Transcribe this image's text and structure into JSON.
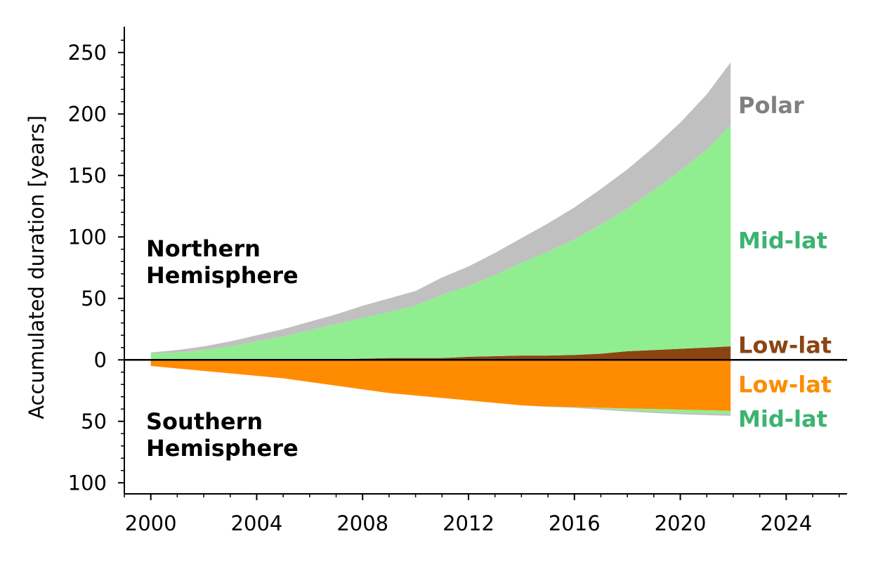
{
  "chart_data": {
    "type": "area",
    "ylabel": "Accumulated duration [years]",
    "xlim": [
      1999,
      2026.3
    ],
    "ylim": [
      -109,
      271
    ],
    "x_ticks": [
      2000,
      2004,
      2008,
      2012,
      2016,
      2020,
      2024
    ],
    "y_ticks": [
      {
        "value": 250,
        "label": "250"
      },
      {
        "value": 200,
        "label": "200"
      },
      {
        "value": 150,
        "label": "150"
      },
      {
        "value": 100,
        "label": "100"
      },
      {
        "value": 50,
        "label": "50"
      },
      {
        "value": 0,
        "label": "0"
      },
      {
        "value": -50,
        "label": "50"
      },
      {
        "value": -100,
        "label": "100"
      }
    ],
    "annotations": {
      "north": [
        "Northern",
        "Hemisphere"
      ],
      "south": [
        "Southern",
        "Hemisphere"
      ]
    },
    "x": [
      2000,
      2001,
      2002,
      2003,
      2004,
      2005,
      2006,
      2007,
      2008,
      2009,
      2010,
      2011,
      2012,
      2013,
      2014,
      2015,
      2016,
      2017,
      2018,
      2019,
      2020,
      2021,
      2021.9
    ],
    "northern_hemisphere": [
      {
        "name": "Low-lat",
        "color": "#8b4513",
        "values": [
          0,
          0,
          0,
          0,
          0,
          0,
          0,
          0.5,
          1,
          1.5,
          1.5,
          1.5,
          2.5,
          3,
          3.5,
          3.5,
          4,
          5,
          7,
          8,
          9,
          10,
          11
        ]
      },
      {
        "name": "Mid-lat",
        "color": "#90ee90",
        "label_color": "#3cb371",
        "values": [
          5,
          6,
          8,
          11,
          15,
          19,
          24,
          28.5,
          33,
          37.5,
          42.5,
          51.5,
          57.5,
          66,
          75.5,
          84.5,
          94,
          105,
          116,
          130,
          145,
          161,
          180
        ]
      },
      {
        "name": "Polar",
        "color": "#c0c0c0",
        "label_color": "#808080",
        "values": [
          1,
          2,
          3,
          4,
          5,
          6,
          7,
          8,
          10,
          11,
          12,
          14,
          16,
          18,
          20,
          23,
          26,
          29,
          32,
          35,
          39,
          45,
          51
        ]
      }
    ],
    "southern_hemisphere": [
      {
        "name": "Low-lat",
        "color": "#ff8c00",
        "values": [
          5,
          7,
          9,
          11,
          13,
          15,
          18,
          21,
          24,
          27,
          29,
          31,
          33,
          35,
          37,
          38,
          38.5,
          39,
          39.5,
          40,
          40.5,
          41,
          41.5
        ]
      },
      {
        "name": "Mid-lat",
        "color": "#90ee90",
        "label_color": "#3cb371",
        "values": [
          0,
          0,
          0,
          0,
          0,
          0,
          0,
          0,
          0,
          0,
          0,
          0,
          0,
          0,
          0,
          0,
          0,
          0.5,
          1.5,
          2,
          2.5,
          2.5,
          2.5
        ]
      },
      {
        "name": "Polar",
        "color": "#c0c0c0",
        "values": [
          0,
          0,
          0,
          0,
          0,
          0,
          0,
          0,
          0,
          0,
          0,
          0,
          0,
          0,
          0,
          0.3,
          0.5,
          1,
          1,
          1.2,
          1.2,
          1.5,
          1.5
        ]
      }
    ],
    "series_labels": [
      {
        "text": "Polar",
        "color": "#808080",
        "anchor_value": 207
      },
      {
        "text": "Mid-lat",
        "color": "#3cb371",
        "anchor_value": 97
      },
      {
        "text": "Low-lat",
        "color": "#8b4513",
        "anchor_value": 12
      },
      {
        "text": "Low-lat",
        "color": "#ff8c00",
        "anchor_value": -20
      },
      {
        "text": "Mid-lat",
        "color": "#3cb371",
        "anchor_value": -48
      }
    ],
    "grid": false
  }
}
